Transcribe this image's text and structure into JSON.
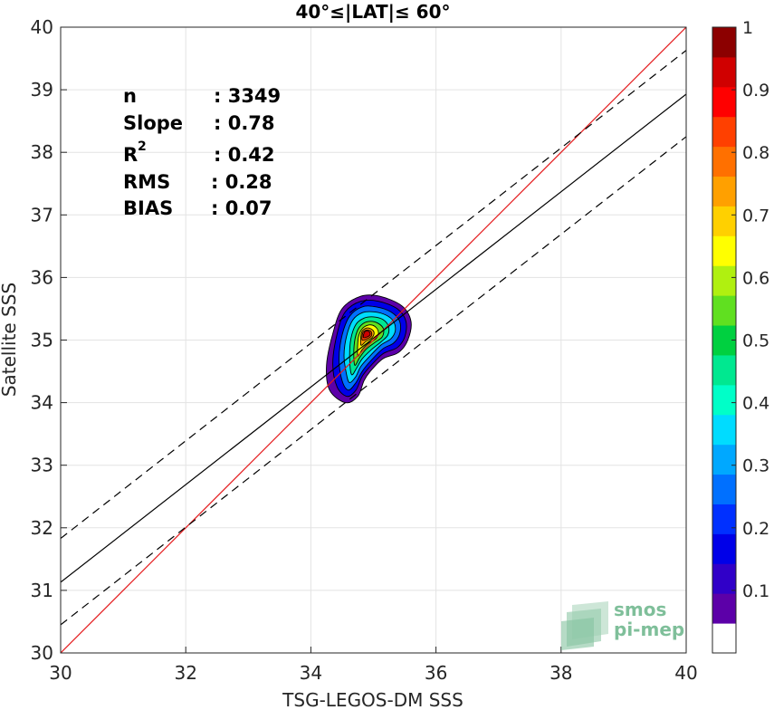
{
  "chart_data": {
    "type": "scatter",
    "title": "40°≤|LAT|≤ 60°",
    "xlabel": "TSG-LEGOS-DM SSS",
    "ylabel": "Satellite SSS",
    "xlim": [
      30,
      40
    ],
    "ylim": [
      30,
      40
    ],
    "xticks": [
      "30",
      "32",
      "34",
      "36",
      "38",
      "40"
    ],
    "yticks": [
      "30",
      "31",
      "32",
      "33",
      "34",
      "35",
      "36",
      "37",
      "38",
      "39",
      "40"
    ],
    "grid": true,
    "lines": [
      {
        "name": "1:1 line",
        "color": "#e41a1c",
        "style": "solid",
        "x": [
          30,
          40
        ],
        "y": [
          30,
          40
        ]
      },
      {
        "name": "regression fit",
        "color": "#000000",
        "style": "solid",
        "x": [
          30,
          40
        ],
        "y": [
          31.13,
          38.93
        ]
      },
      {
        "name": "upper bound",
        "color": "#000000",
        "style": "dashed",
        "x": [
          30,
          40
        ],
        "y": [
          31.83,
          39.63
        ]
      },
      {
        "name": "lower bound",
        "color": "#000000",
        "style": "dashed",
        "x": [
          30,
          40
        ],
        "y": [
          30.45,
          38.25
        ]
      }
    ],
    "density": {
      "description_levels": [
        0.05,
        0.1,
        0.2,
        0.3,
        0.4,
        0.5,
        0.6,
        0.7,
        0.8,
        0.9
      ],
      "center": [
        34.88,
        35.08
      ],
      "contours": [
        [
          [
            34.55,
            34.0
          ],
          [
            34.75,
            34.1
          ],
          [
            34.85,
            34.35
          ],
          [
            34.95,
            34.5
          ],
          [
            35.15,
            34.7
          ],
          [
            35.4,
            34.8
          ],
          [
            35.55,
            35.0
          ],
          [
            35.6,
            35.3
          ],
          [
            35.45,
            35.55
          ],
          [
            35.1,
            35.7
          ],
          [
            34.8,
            35.7
          ],
          [
            34.5,
            35.5
          ],
          [
            34.35,
            35.1
          ],
          [
            34.25,
            34.6
          ],
          [
            34.3,
            34.2
          ]
        ],
        [
          [
            34.58,
            34.1
          ],
          [
            34.72,
            34.2
          ],
          [
            34.82,
            34.42
          ],
          [
            34.95,
            34.58
          ],
          [
            35.15,
            34.78
          ],
          [
            35.38,
            34.88
          ],
          [
            35.5,
            35.05
          ],
          [
            35.52,
            35.3
          ],
          [
            35.38,
            35.5
          ],
          [
            35.08,
            35.62
          ],
          [
            34.8,
            35.62
          ],
          [
            34.55,
            35.45
          ],
          [
            34.42,
            35.1
          ],
          [
            34.35,
            34.62
          ],
          [
            34.42,
            34.25
          ]
        ],
        [
          [
            34.6,
            34.2
          ],
          [
            34.72,
            34.32
          ],
          [
            34.82,
            34.5
          ],
          [
            34.95,
            34.66
          ],
          [
            35.15,
            34.86
          ],
          [
            35.32,
            34.95
          ],
          [
            35.42,
            35.1
          ],
          [
            35.42,
            35.3
          ],
          [
            35.28,
            35.45
          ],
          [
            35.05,
            35.53
          ],
          [
            34.82,
            35.53
          ],
          [
            34.62,
            35.38
          ],
          [
            34.5,
            35.08
          ],
          [
            34.45,
            34.7
          ],
          [
            34.5,
            34.35
          ]
        ],
        [
          [
            34.62,
            34.32
          ],
          [
            34.72,
            34.42
          ],
          [
            34.8,
            34.58
          ],
          [
            34.95,
            34.75
          ],
          [
            35.12,
            34.92
          ],
          [
            35.28,
            35.02
          ],
          [
            35.35,
            35.15
          ],
          [
            35.32,
            35.3
          ],
          [
            35.2,
            35.4
          ],
          [
            35.02,
            35.45
          ],
          [
            34.83,
            35.44
          ],
          [
            34.67,
            35.32
          ],
          [
            34.57,
            35.06
          ],
          [
            34.53,
            34.75
          ],
          [
            34.57,
            34.45
          ]
        ],
        [
          [
            34.65,
            34.45
          ],
          [
            34.73,
            34.55
          ],
          [
            34.82,
            34.7
          ],
          [
            34.97,
            34.85
          ],
          [
            35.12,
            34.97
          ],
          [
            35.23,
            35.08
          ],
          [
            35.24,
            35.22
          ],
          [
            35.15,
            35.33
          ],
          [
            35.0,
            35.37
          ],
          [
            34.85,
            35.35
          ],
          [
            34.72,
            35.25
          ],
          [
            34.64,
            35.02
          ],
          [
            34.62,
            34.72
          ]
        ],
        [
          [
            34.7,
            34.6
          ],
          [
            34.78,
            34.72
          ],
          [
            34.88,
            34.85
          ],
          [
            35.02,
            34.96
          ],
          [
            35.14,
            35.05
          ],
          [
            35.16,
            35.18
          ],
          [
            35.07,
            35.27
          ],
          [
            34.95,
            35.3
          ],
          [
            34.83,
            35.26
          ],
          [
            34.74,
            35.14
          ],
          [
            34.69,
            34.9
          ]
        ],
        [
          [
            34.75,
            34.75
          ],
          [
            34.82,
            34.85
          ],
          [
            34.92,
            34.95
          ],
          [
            35.04,
            35.02
          ],
          [
            35.08,
            35.13
          ],
          [
            35.02,
            35.22
          ],
          [
            34.92,
            35.24
          ],
          [
            34.82,
            35.18
          ],
          [
            34.76,
            35.04
          ]
        ],
        [
          [
            34.8,
            34.92
          ],
          [
            34.88,
            34.98
          ],
          [
            34.98,
            35.04
          ],
          [
            35.01,
            35.12
          ],
          [
            34.96,
            35.18
          ],
          [
            34.88,
            35.19
          ],
          [
            34.81,
            35.12
          ]
        ],
        [
          [
            34.82,
            35.0
          ],
          [
            34.9,
            35.02
          ],
          [
            34.97,
            35.07
          ],
          [
            34.96,
            35.14
          ],
          [
            34.89,
            35.16
          ],
          [
            34.83,
            35.12
          ]
        ],
        [
          [
            34.84,
            35.04
          ],
          [
            34.92,
            35.06
          ],
          [
            34.95,
            35.1
          ],
          [
            34.92,
            35.14
          ],
          [
            34.86,
            35.13
          ]
        ]
      ]
    },
    "colorbar": {
      "range": [
        0,
        1
      ],
      "ticks": [
        "0.1",
        "0.2",
        "0.3",
        "0.4",
        "0.5",
        "0.6",
        "0.7",
        "0.8",
        "0.9",
        "1"
      ],
      "colors": [
        "#ffffff",
        "#5c00a8",
        "#3000c8",
        "#0000e8",
        "#0030ff",
        "#0070ff",
        "#00a8ff",
        "#00dcff",
        "#00ffc8",
        "#00e890",
        "#00d040",
        "#60e020",
        "#b0f010",
        "#ffff00",
        "#ffd000",
        "#ffa000",
        "#ff7000",
        "#ff4000",
        "#ff0000",
        "#d00000",
        "#8c0000"
      ]
    },
    "stats": [
      {
        "label": "n",
        "sep": ": 3349"
      },
      {
        "label": "Slope",
        "sep": ": 0.78"
      },
      {
        "label": "R",
        "sup": "2",
        "sep": ": 0.42"
      },
      {
        "label": "RMS",
        "sep": ": 0.28"
      },
      {
        "label": "BIAS",
        "sep": ": 0.07"
      }
    ],
    "logo": {
      "line1": "smos",
      "line2": "pi-mep"
    }
  }
}
